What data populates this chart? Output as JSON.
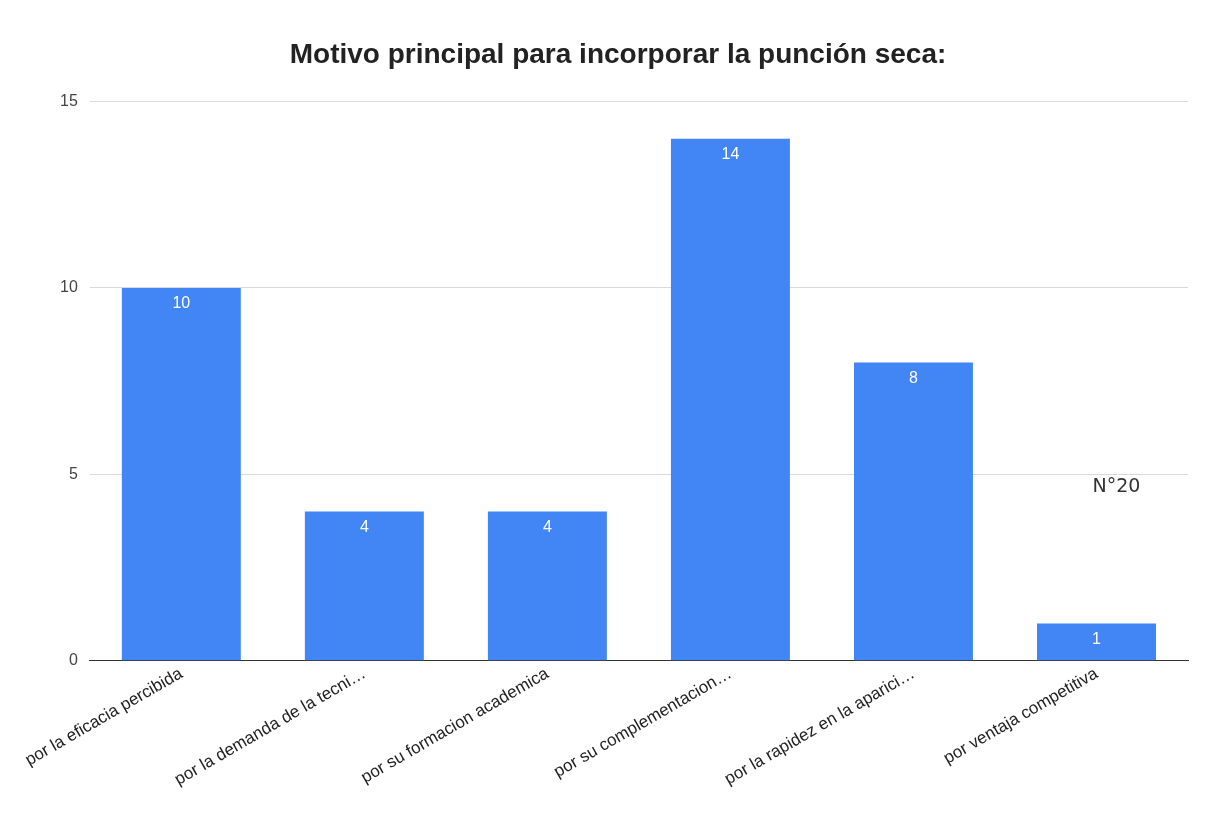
{
  "chart_data": {
    "type": "bar",
    "title": "Motivo principal para incorporar la punción seca:",
    "categories": [
      "por la eficacia percibida",
      "por la demanda de la tecni…",
      "por su formacion academica",
      "por su complementacion…",
      "por la rapidez en la aparici…",
      "por ventaja competitiva"
    ],
    "values": [
      10,
      4,
      4,
      14,
      8,
      1
    ],
    "color": "#4285f4",
    "ylim": [
      0,
      15
    ],
    "yticks": [
      0,
      5,
      10,
      15
    ],
    "grid": "y",
    "data_labels": true,
    "annotations": [
      "N°20"
    ]
  }
}
